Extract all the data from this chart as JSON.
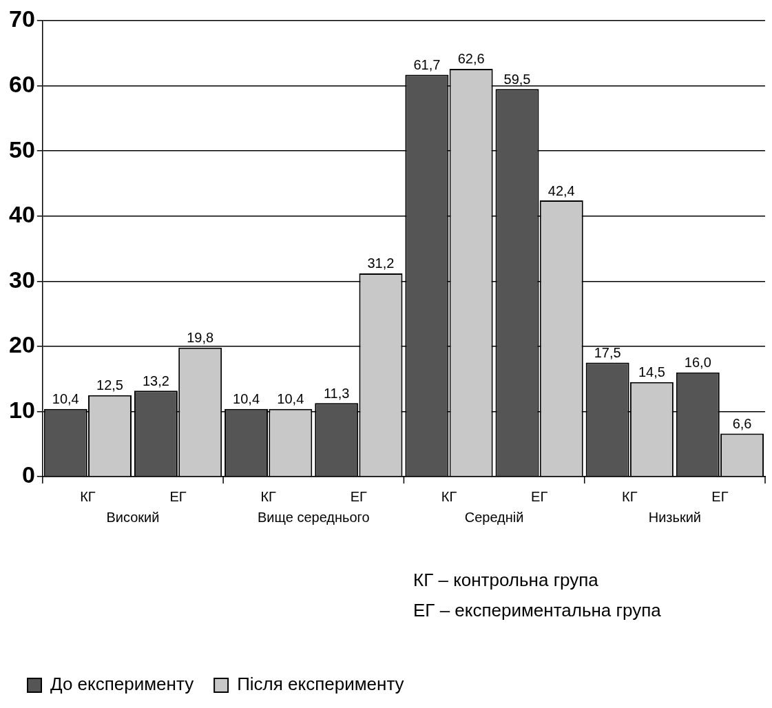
{
  "chart_data": {
    "type": "bar",
    "categories": [
      "КГ",
      "ЕГ",
      "КГ",
      "ЕГ",
      "КГ",
      "ЕГ",
      "КГ",
      "ЕГ"
    ],
    "series": [
      {
        "name": "До експерименту",
        "color": "#555555",
        "values": [
          10.4,
          13.2,
          10.4,
          11.3,
          61.7,
          59.5,
          17.5,
          16.0
        ],
        "value_labels": [
          "10,4",
          "13,2",
          "10,4",
          "11,3",
          "61,7",
          "59,5",
          "17,5",
          "16,0"
        ]
      },
      {
        "name": "Після експерименту",
        "color": "#c8c8c8",
        "values": [
          12.5,
          19.8,
          10.4,
          31.2,
          62.6,
          42.4,
          14.5,
          6.6
        ],
        "value_labels": [
          "12,5",
          "19,8",
          "10,4",
          "31,2",
          "62,6",
          "42,4",
          "14,5",
          "6,6"
        ]
      }
    ],
    "annotations": [
      "Високий",
      "Вище середнього",
      "Середній",
      "Низький",
      "КГ – контрольна група",
      "ЕГ – експериментальна група"
    ],
    "ylim": [
      0,
      70
    ],
    "yticks": [
      0,
      10,
      20,
      30,
      40,
      50,
      60,
      70
    ],
    "grid": "y",
    "legend": "bottom left"
  }
}
